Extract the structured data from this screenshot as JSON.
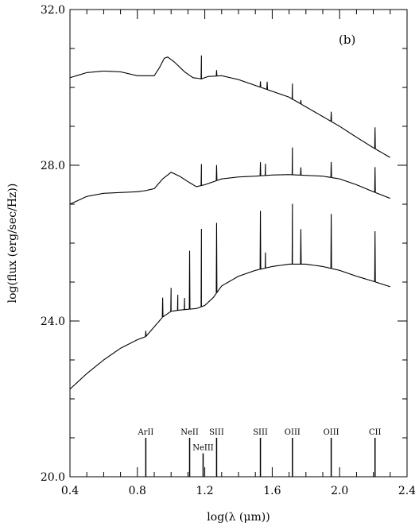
{
  "chart_data": {
    "type": "line",
    "title": "",
    "panel_label": "(b)",
    "xlabel": "log(λ (μm))",
    "ylabel": "log(flux (erg/sec/Hz))",
    "xlim": [
      0.4,
      2.4
    ],
    "ylim": [
      20.0,
      32.0
    ],
    "x_ticks": [
      {
        "value": 0.4,
        "label": "0.4"
      },
      {
        "value": 0.8,
        "label": "0.8"
      },
      {
        "value": 1.2,
        "label": "1.2"
      },
      {
        "value": 1.6,
        "label": "1.6"
      },
      {
        "value": 2.0,
        "label": "2.0"
      },
      {
        "value": 2.4,
        "label": "2.4"
      }
    ],
    "y_ticks": [
      {
        "value": 20.0,
        "label": "20.0"
      },
      {
        "value": 24.0,
        "label": "24.0"
      },
      {
        "value": 28.0,
        "label": "28.0"
      },
      {
        "value": 32.0,
        "label": "32.0"
      }
    ],
    "x_minor_step": 0.1,
    "y_minor_step": 1.0,
    "grid": false,
    "series": [
      {
        "continuum": [
          [
            0.4,
            30.25
          ],
          [
            0.5,
            30.38
          ],
          [
            0.6,
            30.42
          ],
          [
            0.7,
            30.4
          ],
          [
            0.8,
            30.3
          ],
          [
            0.9,
            30.3
          ],
          [
            0.93,
            30.5
          ],
          [
            0.96,
            30.75
          ],
          [
            0.98,
            30.78
          ],
          [
            1.02,
            30.65
          ],
          [
            1.08,
            30.4
          ],
          [
            1.13,
            30.25
          ],
          [
            1.18,
            30.22
          ],
          [
            1.22,
            30.28
          ],
          [
            1.3,
            30.3
          ],
          [
            1.4,
            30.2
          ],
          [
            1.5,
            30.05
          ],
          [
            1.6,
            29.9
          ],
          [
            1.7,
            29.75
          ],
          [
            1.8,
            29.5
          ],
          [
            1.9,
            29.25
          ],
          [
            2.0,
            29.0
          ],
          [
            2.1,
            28.72
          ],
          [
            2.2,
            28.45
          ],
          [
            2.3,
            28.2
          ]
        ],
        "lines": [
          [
            1.18,
            0.6
          ],
          [
            1.27,
            0.15
          ],
          [
            1.53,
            0.15
          ],
          [
            1.57,
            0.2
          ],
          [
            1.72,
            0.4
          ],
          [
            1.77,
            0.1
          ],
          [
            1.95,
            0.25
          ],
          [
            2.21,
            0.55
          ]
        ]
      },
      {
        "continuum": [
          [
            0.4,
            27.0
          ],
          [
            0.5,
            27.2
          ],
          [
            0.6,
            27.28
          ],
          [
            0.7,
            27.3
          ],
          [
            0.8,
            27.32
          ],
          [
            0.85,
            27.35
          ],
          [
            0.9,
            27.4
          ],
          [
            0.95,
            27.65
          ],
          [
            1.0,
            27.82
          ],
          [
            1.05,
            27.72
          ],
          [
            1.1,
            27.58
          ],
          [
            1.15,
            27.45
          ],
          [
            1.2,
            27.5
          ],
          [
            1.3,
            27.65
          ],
          [
            1.4,
            27.7
          ],
          [
            1.5,
            27.72
          ],
          [
            1.6,
            27.75
          ],
          [
            1.7,
            27.76
          ],
          [
            1.8,
            27.74
          ],
          [
            1.9,
            27.72
          ],
          [
            2.0,
            27.65
          ],
          [
            2.1,
            27.5
          ],
          [
            2.2,
            27.32
          ],
          [
            2.3,
            27.15
          ]
        ],
        "lines": [
          [
            1.18,
            0.55
          ],
          [
            1.27,
            0.4
          ],
          [
            1.53,
            0.35
          ],
          [
            1.56,
            0.3
          ],
          [
            1.72,
            0.7
          ],
          [
            1.77,
            0.2
          ],
          [
            1.95,
            0.4
          ],
          [
            2.21,
            0.65
          ]
        ]
      },
      {
        "continuum": [
          [
            0.4,
            22.25
          ],
          [
            0.5,
            22.65
          ],
          [
            0.6,
            23.0
          ],
          [
            0.7,
            23.3
          ],
          [
            0.8,
            23.52
          ],
          [
            0.85,
            23.6
          ],
          [
            0.9,
            23.85
          ],
          [
            0.95,
            24.1
          ],
          [
            1.0,
            24.25
          ],
          [
            1.05,
            24.28
          ],
          [
            1.1,
            24.3
          ],
          [
            1.15,
            24.32
          ],
          [
            1.2,
            24.4
          ],
          [
            1.25,
            24.6
          ],
          [
            1.3,
            24.9
          ],
          [
            1.4,
            25.15
          ],
          [
            1.5,
            25.3
          ],
          [
            1.6,
            25.4
          ],
          [
            1.7,
            25.46
          ],
          [
            1.8,
            25.46
          ],
          [
            1.9,
            25.4
          ],
          [
            2.0,
            25.3
          ],
          [
            2.1,
            25.15
          ],
          [
            2.2,
            25.02
          ],
          [
            2.3,
            24.88
          ]
        ],
        "lines": [
          [
            0.85,
            0.15
          ],
          [
            0.95,
            0.5
          ],
          [
            1.0,
            0.6
          ],
          [
            1.04,
            0.4
          ],
          [
            1.08,
            0.3
          ],
          [
            1.11,
            1.5
          ],
          [
            1.18,
            2.0
          ],
          [
            1.27,
            1.8
          ],
          [
            1.53,
            1.5
          ],
          [
            1.56,
            0.4
          ],
          [
            1.72,
            1.55
          ],
          [
            1.77,
            0.9
          ],
          [
            1.95,
            1.4
          ],
          [
            2.21,
            1.3
          ]
        ]
      }
    ],
    "emission_markers": [
      {
        "label": "ArII",
        "x": 0.85,
        "top": 21.0
      },
      {
        "label": "NeII",
        "x": 1.11,
        "top": 21.0
      },
      {
        "label": "NeIII",
        "x": 1.19,
        "top": 20.6
      },
      {
        "label": "SIII",
        "x": 1.27,
        "top": 21.0
      },
      {
        "label": "SIII",
        "x": 1.53,
        "top": 21.0
      },
      {
        "label": "OIII",
        "x": 1.72,
        "top": 21.0
      },
      {
        "label": "OIII",
        "x": 1.95,
        "top": 21.0
      },
      {
        "label": "CII",
        "x": 2.21,
        "top": 21.0
      }
    ]
  }
}
